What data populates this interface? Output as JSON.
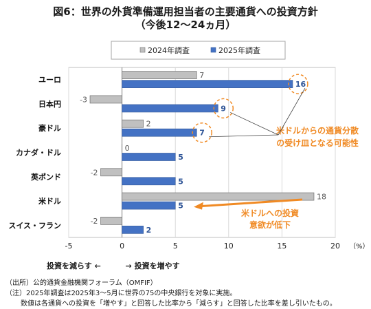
{
  "header": {
    "title": "図6：世界の外貨準備運用担当者の主要通貨への投資方針",
    "subtitle": "（今後12〜24ヵ月）"
  },
  "chart_data": {
    "type": "bar",
    "orientation": "horizontal",
    "categories": [
      "ユーロ",
      "日本円",
      "豪ドル",
      "カナダ・ドル",
      "英ポンド",
      "米ドル",
      "スイス・フラン"
    ],
    "series": [
      {
        "name": "2024年調査",
        "values": [
          7,
          -3,
          2,
          0,
          -2,
          18,
          -2
        ],
        "color": "#c0c0c0",
        "border": "#6f6f6f"
      },
      {
        "name": "2025年調査",
        "values": [
          16,
          9,
          7,
          5,
          5,
          5,
          2
        ],
        "color": "#4472c4",
        "border": "#3a5f9e"
      }
    ],
    "xlim": [
      -5,
      20
    ],
    "xticks": [
      "-5",
      "0",
      "5",
      "10",
      "15",
      "20"
    ],
    "xunit": "（%）",
    "legend_position": "top",
    "highlight_categories": [
      "ユーロ",
      "日本円",
      "豪ドル"
    ],
    "annotations": [
      {
        "text_lines": [
          "米ドルからの通貨分散",
          "の受け皿となる可能性"
        ],
        "color": "#f08a24"
      },
      {
        "text_lines": [
          "米ドルへの投資",
          "意欲が低下"
        ],
        "color": "#f08a24"
      }
    ]
  },
  "axis_direction": {
    "left_label": "投資を減らす",
    "left_arrow": "←",
    "right_arrow": "→",
    "right_label": "投資を増やす"
  },
  "notes": [
    "（出所）公的通貨金融機関フォーラム（OMFIF）",
    "（注）2025年調査は2025年3〜5月に世界の75の中央銀行を対象に実施。",
    "数値は各通貨への投資を「増やす」と回答した比率から「減らす」と回答した比率を差し引いたもの。"
  ]
}
